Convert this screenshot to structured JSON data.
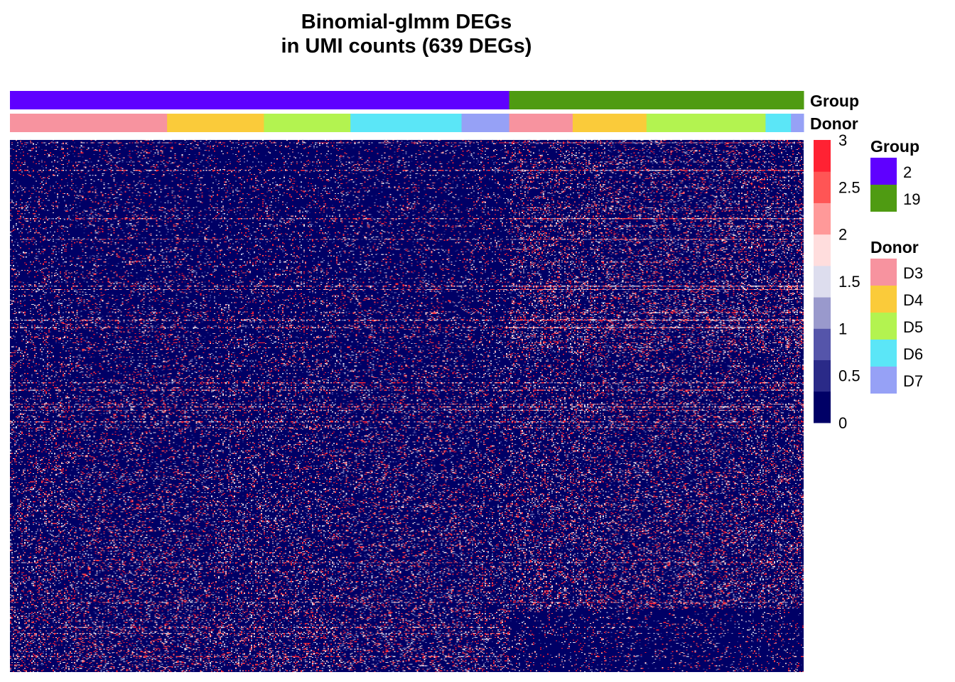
{
  "chart_data": {
    "type": "heatmap",
    "title_lines": [
      "Binomial-glmm DEGs",
      "in UMI counts (639 DEGs)"
    ],
    "rows": 639,
    "annotation_tracks": [
      {
        "name": "Group",
        "segments": [
          {
            "label": "2",
            "color": "#5F00FF",
            "proportion": 0.629
          },
          {
            "label": "19",
            "color": "#4F9B12",
            "proportion": 0.371
          }
        ]
      },
      {
        "name": "Donor",
        "segments": [
          {
            "label": "D3",
            "color": "#F7939F",
            "proportion": 0.198
          },
          {
            "label": "D4",
            "color": "#FACB3A",
            "proportion": 0.122
          },
          {
            "label": "D5",
            "color": "#B3F350",
            "proportion": 0.109
          },
          {
            "label": "D6",
            "color": "#5BE6F7",
            "proportion": 0.14
          },
          {
            "label": "D7",
            "color": "#96A1F6",
            "proportion": 0.06
          },
          {
            "label": "D3",
            "color": "#F7939F",
            "proportion": 0.08
          },
          {
            "label": "D4",
            "color": "#FACB3A",
            "proportion": 0.093
          },
          {
            "label": "D5",
            "color": "#B3F350",
            "proportion": 0.15
          },
          {
            "label": "D6",
            "color": "#5BE6F7",
            "proportion": 0.032
          },
          {
            "label": "D7",
            "color": "#96A1F6",
            "proportion": 0.016
          }
        ]
      }
    ],
    "color_scale": {
      "min": 0,
      "max": 3,
      "ticks": [
        "3",
        "2.5",
        "2",
        "1.5",
        "1",
        "0.5",
        "0"
      ],
      "colors": [
        "#000066",
        "#2A2A88",
        "#5555AA",
        "#9999CC",
        "#DDDDEE",
        "#FFDDDD",
        "#FF9999",
        "#FF5555",
        "#FF2233"
      ]
    },
    "legends": [
      {
        "title": "Group",
        "entries": [
          {
            "label": "2",
            "color": "#5F00FF"
          },
          {
            "label": "19",
            "color": "#4F9B12"
          }
        ]
      },
      {
        "title": "Donor",
        "entries": [
          {
            "label": "D3",
            "color": "#F7939F"
          },
          {
            "label": "D4",
            "color": "#FACB3A"
          },
          {
            "label": "D5",
            "color": "#B3F350"
          },
          {
            "label": "D6",
            "color": "#5BE6F7"
          },
          {
            "label": "D7",
            "color": "#96A1F6"
          }
        ]
      }
    ]
  }
}
